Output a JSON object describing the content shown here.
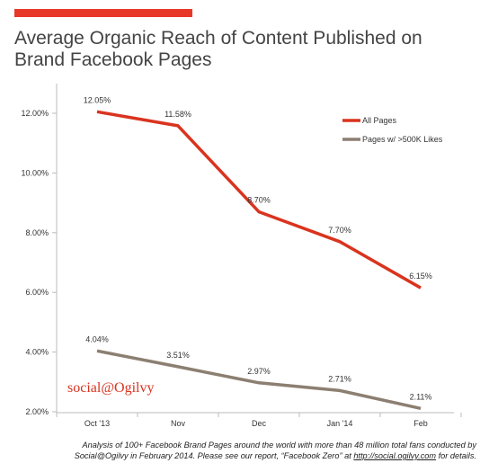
{
  "header": {
    "title_line1": "Average Organic Reach of Content Published on",
    "title_line2": "Brand Facebook Pages"
  },
  "colors": {
    "accent": "#e8382a",
    "all_pages": "#d9341f",
    "big_pages": "#8c7f72",
    "axis": "#bbbbbb",
    "brand": "#d9341f"
  },
  "chart_data": {
    "type": "line",
    "categories": [
      "Oct '13",
      "Nov",
      "Dec",
      "Jan '14",
      "Feb"
    ],
    "series": [
      {
        "name": "All Pages",
        "values": [
          12.05,
          11.58,
          8.7,
          7.7,
          6.15
        ],
        "labels": [
          "12.05%",
          "11.58%",
          "8.70%",
          "7.70%",
          "6.15%"
        ]
      },
      {
        "name": "Pages w/ >500K Likes",
        "values": [
          4.04,
          3.51,
          2.97,
          2.71,
          2.11
        ],
        "labels": [
          "4.04%",
          "3.51%",
          "2.97%",
          "2.71%",
          "2.11%"
        ]
      }
    ],
    "y_ticks": [
      2,
      4,
      6,
      8,
      10,
      12
    ],
    "y_tick_labels": [
      "2.00%",
      "4.00%",
      "6.00%",
      "8.00%",
      "10.00%",
      "12.00%"
    ],
    "ylim": [
      2,
      12
    ],
    "grid": false,
    "legend_position": "top-right"
  },
  "brand": "social@Ogilvy",
  "footnote": {
    "text_line1": "Analysis of 100+ Facebook Brand Pages around the world with more than 48 million total fans conducted by",
    "text_line2_prefix": "Social@Ogilvy in February 2014. Please see our report, “Facebook Zero” at ",
    "link": "http://social.ogilvy.com",
    "text_line2_suffix": " for details."
  }
}
